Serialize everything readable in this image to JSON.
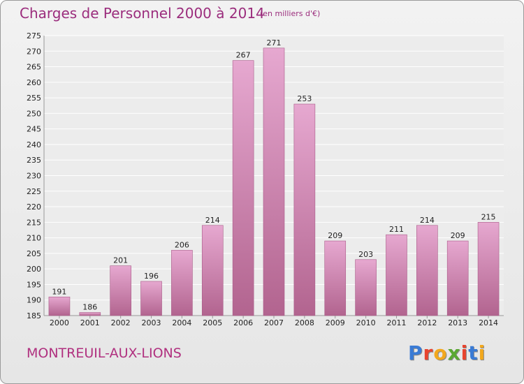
{
  "header": {
    "title": "Charges de Personnel 2000 à 2014",
    "unit": "(en milliers d'€)"
  },
  "footer": {
    "city": "MONTREUIL-AUX-LIONS",
    "logo": "Proxiti"
  },
  "colors": {
    "bar_top": "#e6a8d0",
    "bar_bottom": "#b2648f",
    "accent": "#9b2d7d",
    "logo_letters": [
      "#3a7bd5",
      "#e8442e",
      "#f2a81d",
      "#5aa832",
      "#e8442e",
      "#3a7bd5",
      "#f2a81d"
    ]
  },
  "chart_data": {
    "type": "bar",
    "title": "Charges de Personnel 2000 à 2014",
    "categories": [
      "2000",
      "2001",
      "2002",
      "2003",
      "2004",
      "2005",
      "2006",
      "2007",
      "2008",
      "2009",
      "2010",
      "2011",
      "2012",
      "2013",
      "2014"
    ],
    "values": [
      191,
      186,
      201,
      196,
      206,
      214,
      267,
      271,
      253,
      209,
      203,
      211,
      214,
      209,
      215
    ],
    "ylim": [
      185,
      275
    ],
    "ytick_step": 5,
    "grid": true,
    "legend": "none"
  }
}
